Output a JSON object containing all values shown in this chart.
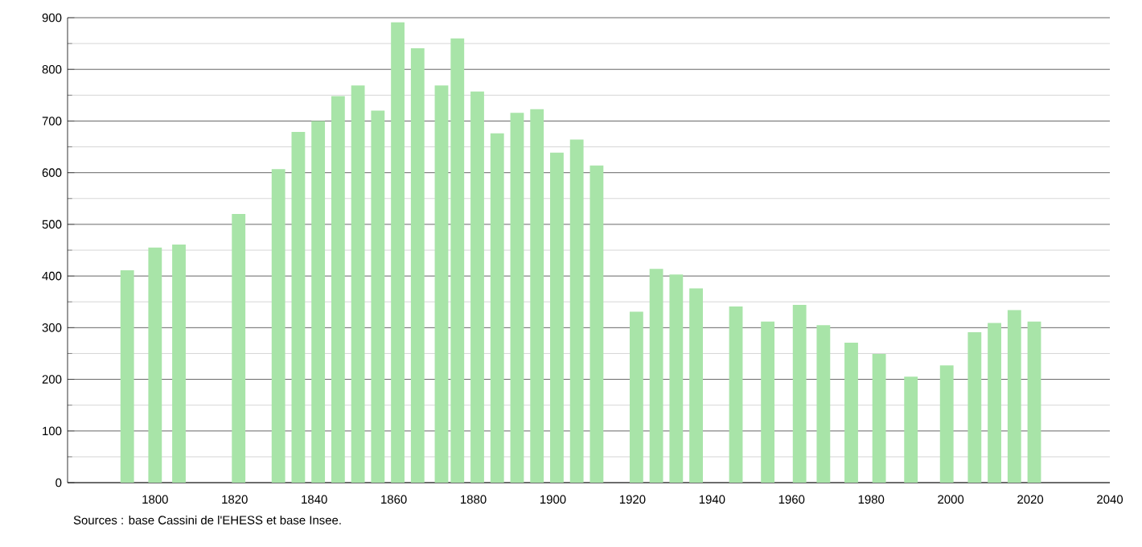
{
  "chart_data": {
    "type": "bar",
    "x": [
      1793,
      1800,
      1806,
      1821,
      1831,
      1836,
      1841,
      1846,
      1851,
      1856,
      1861,
      1866,
      1872,
      1876,
      1881,
      1886,
      1891,
      1896,
      1901,
      1906,
      1911,
      1921,
      1926,
      1931,
      1936,
      1946,
      1954,
      1962,
      1968,
      1975,
      1982,
      1990,
      1999,
      2006,
      2011,
      2016,
      2021
    ],
    "values": [
      411,
      455,
      461,
      520,
      607,
      679,
      700,
      748,
      769,
      720,
      891,
      841,
      769,
      860,
      757,
      676,
      716,
      723,
      639,
      664,
      614,
      331,
      414,
      403,
      376,
      341,
      312,
      344,
      305,
      271,
      249,
      205,
      227,
      291,
      309,
      334,
      312
    ],
    "color": "#a8e4a8",
    "xlim": [
      1778,
      2040
    ],
    "xticks": [
      1800,
      1820,
      1840,
      1860,
      1880,
      1900,
      1920,
      1940,
      1960,
      1980,
      2000,
      2020,
      2040
    ],
    "ylim": [
      0,
      900
    ],
    "yticks": [
      0,
      100,
      200,
      300,
      400,
      500,
      600,
      700,
      800,
      900
    ],
    "grid": "y",
    "annotations": [
      "Sources : base Cassini de l'EHESS et base Insee."
    ]
  }
}
